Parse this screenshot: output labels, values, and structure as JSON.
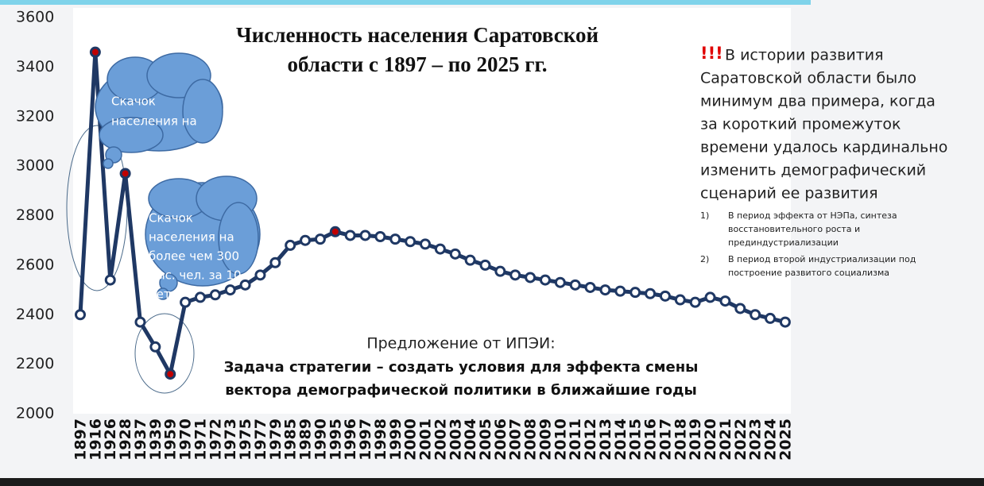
{
  "chart_data": {
    "type": "line",
    "title_lines": [
      "Численность населения Саратовской",
      "области с 1897 – по 2025 гг."
    ],
    "categories": [
      "1897",
      "1916",
      "1926",
      "1928",
      "1937",
      "1939",
      "1959",
      "1970",
      "1971",
      "1972",
      "1973",
      "1975",
      "1977",
      "1979",
      "1985",
      "1989",
      "1990",
      "1995",
      "1996",
      "1997",
      "1998",
      "1999",
      "2000",
      "2001",
      "2002",
      "2003",
      "2004",
      "2005",
      "2006",
      "2007",
      "2008",
      "2009",
      "2010",
      "2011",
      "2012",
      "2013",
      "2014",
      "2015",
      "2016",
      "2017",
      "2018",
      "2019",
      "2020",
      "2021",
      "2022",
      "2023",
      "2024",
      "2025"
    ],
    "series": [
      {
        "name": "Численность населения",
        "color": "#1f3864",
        "values": [
          2400,
          3460,
          2540,
          2970,
          2370,
          2270,
          2160,
          2450,
          2470,
          2480,
          2500,
          2520,
          2560,
          2610,
          2680,
          2700,
          2705,
          2735,
          2720,
          2720,
          2715,
          2705,
          2695,
          2685,
          2665,
          2645,
          2620,
          2600,
          2575,
          2560,
          2550,
          2540,
          2530,
          2520,
          2510,
          2500,
          2495,
          2490,
          2485,
          2475,
          2460,
          2450,
          2470,
          2455,
          2425,
          2400,
          2385,
          2370
        ]
      }
    ],
    "highlight_indices": [
      1,
      3,
      6,
      17
    ],
    "highlight_color": "#c00000",
    "ylim": [
      2000,
      3600
    ],
    "yticks": [
      2000,
      2200,
      2400,
      2600,
      2800,
      3000,
      3200,
      3400,
      3600
    ],
    "grid": false,
    "annotations": {
      "cloud1": [
        "Скачок",
        "населения на"
      ],
      "cloud2": [
        "Скачок",
        "населения на",
        "более чем 300",
        "тыс. чел. за 10",
        "лет"
      ],
      "alert": "!!!",
      "side_lines": [
        " В истории развития",
        "Саратовской области было",
        "минимум два примера, когда",
        "за короткий промежуток",
        "времени удалось кардинально",
        "изменить демографический",
        "сценарий ее развития"
      ],
      "list": [
        {
          "num": "1)",
          "lines": [
            "В период эффекта от НЭПа, синтеза",
            "восстановительного роста и",
            "прединдустриализации"
          ]
        },
        {
          "num": "2)",
          "lines": [
            "В период второй индустриализации под",
            "построение развитого социализма"
          ]
        }
      ],
      "proposal": "Предложение от ИПЭИ:",
      "task_lines": [
        "Задача стратегии – создать условия для эффекта смены",
        "вектора демографической политики в ближайшие годы"
      ]
    }
  }
}
